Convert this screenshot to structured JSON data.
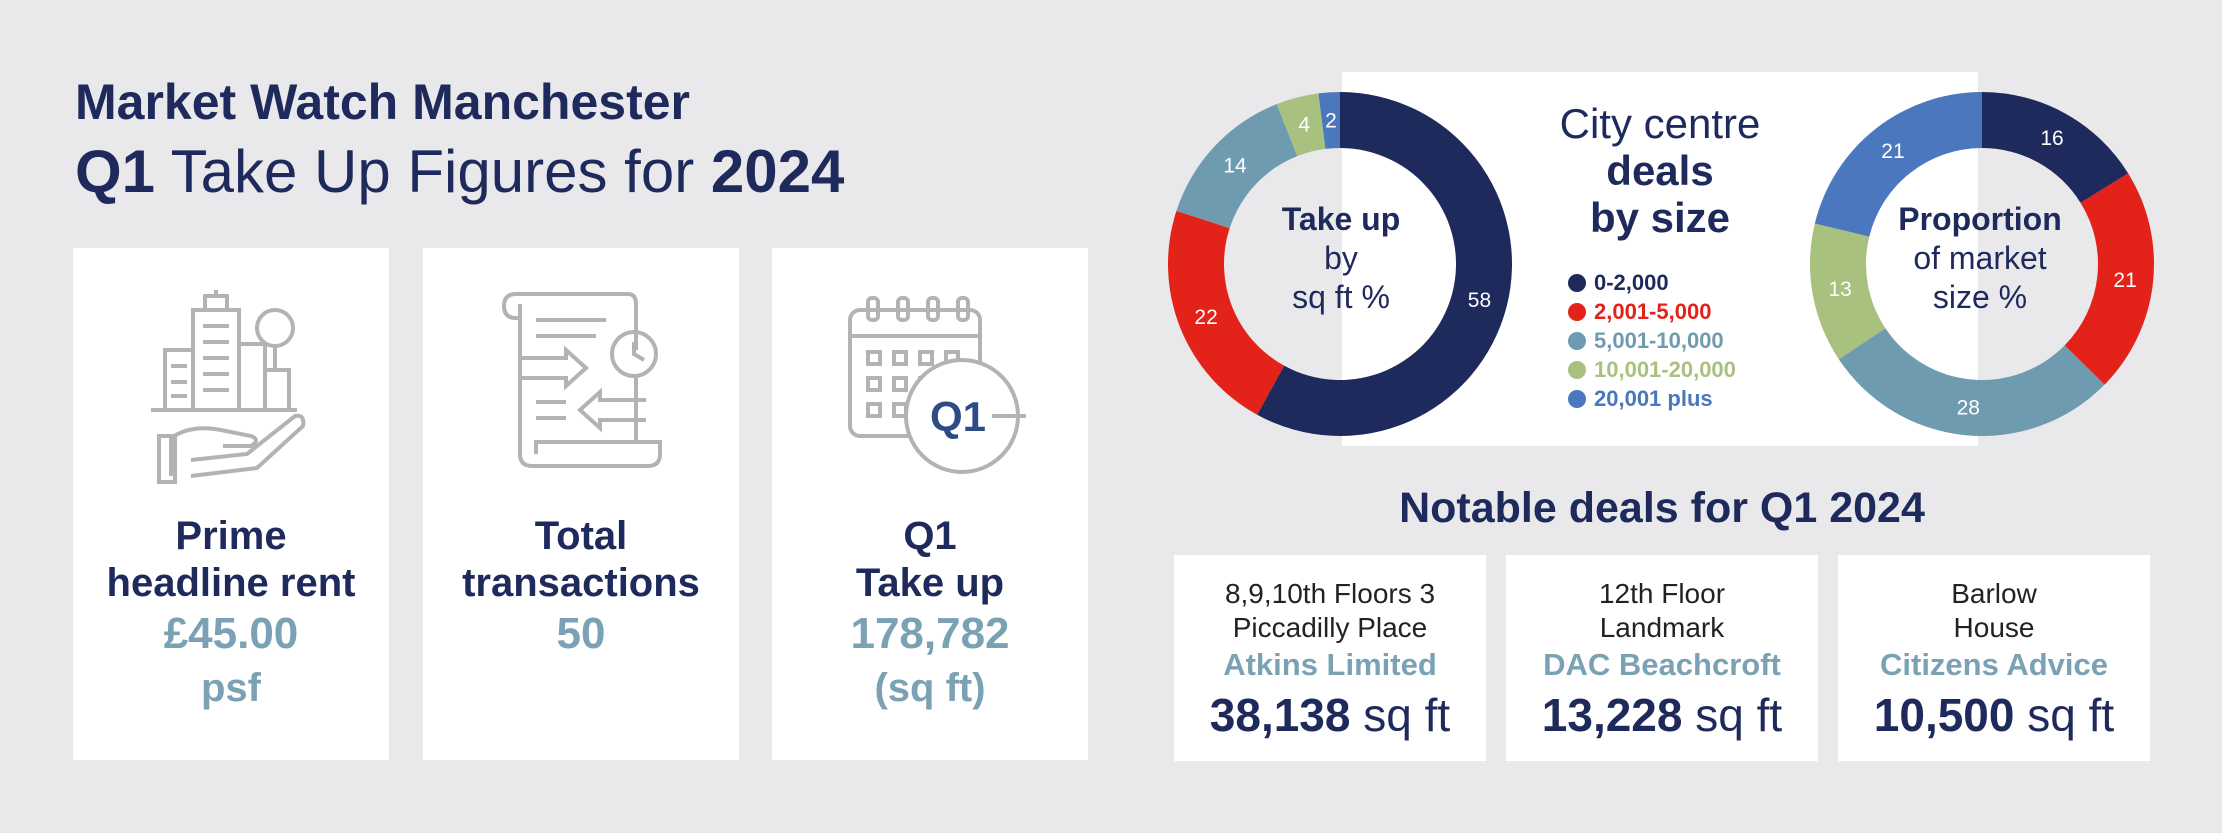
{
  "header": {
    "title_line1": "Market Watch Manchester",
    "title_q": "Q1",
    "title_mid": " Take Up Figures for ",
    "title_year": "2024"
  },
  "cards": {
    "rent": {
      "label_line1": "Prime",
      "label_line2": "headline rent",
      "value": "£45.00",
      "unit": "psf"
    },
    "transactions": {
      "label_line1": "Total",
      "label_line2": "transactions",
      "value": "50"
    },
    "takeup": {
      "label_line1": "Q1",
      "label_line2": "Take up",
      "value": "178,782",
      "unit": "(sq ft)",
      "icon_badge": "Q1"
    }
  },
  "panel": {
    "title_line1": "City centre",
    "title_line2": "deals",
    "title_line3": "by size"
  },
  "colors": {
    "navy": "#1f2a5c",
    "red": "#e32219",
    "teal": "#6f9bb0",
    "green": "#a9c17e",
    "blue": "#4b77be",
    "accent_text": "#7aa2b4"
  },
  "chart_data": [
    {
      "type": "pie",
      "variant": "donut",
      "title": "Take up by sq ft %",
      "center_bold": "Take up",
      "center_line2": "by",
      "center_line3": "sq ft %",
      "categories": [
        "0-2,000",
        "2,001-5,000",
        "5,001-10,000",
        "10,001-20,000",
        "20,001 plus"
      ],
      "values": [
        58,
        22,
        14,
        4,
        2
      ],
      "colors": [
        "#1f2a5c",
        "#e32219",
        "#6f9bb0",
        "#a9c17e",
        "#4b77be"
      ],
      "legend": "center"
    },
    {
      "type": "pie",
      "variant": "donut",
      "title": "Proportion of market size %",
      "center_bold": "Proportion",
      "center_line2": "of market",
      "center_line3": "size %",
      "categories": [
        "0-2,000",
        "2,001-5,000",
        "5,001-10,000",
        "10,001-20,000",
        "20,001 plus"
      ],
      "values": [
        16,
        21,
        28,
        13,
        21
      ],
      "colors": [
        "#1f2a5c",
        "#e32219",
        "#6f9bb0",
        "#a9c17e",
        "#4b77be"
      ],
      "legend": "center"
    }
  ],
  "legend": [
    {
      "label": "0-2,000",
      "color": "#1f2a5c"
    },
    {
      "label": "2,001-5,000",
      "color": "#e32219"
    },
    {
      "label": "5,001-10,000",
      "color": "#6f9bb0"
    },
    {
      "label": "10,001-20,000",
      "color": "#a9c17e"
    },
    {
      "label": "20,001 plus",
      "color": "#4b77be"
    }
  ],
  "deals": {
    "title": "Notable deals for Q1 2024",
    "items": [
      {
        "addr1": "8,9,10th Floors 3",
        "addr2": "Piccadilly Place",
        "company": "Atkins Limited",
        "size": "38,138",
        "unit": " sq ft"
      },
      {
        "addr1": "12th Floor",
        "addr2": "Landmark",
        "company": "DAC Beachcroft",
        "size": "13,228",
        "unit": " sq ft"
      },
      {
        "addr1": "Barlow",
        "addr2": "House",
        "company": "Citizens Advice",
        "size": "10,500",
        "unit": " sq ft"
      }
    ]
  }
}
